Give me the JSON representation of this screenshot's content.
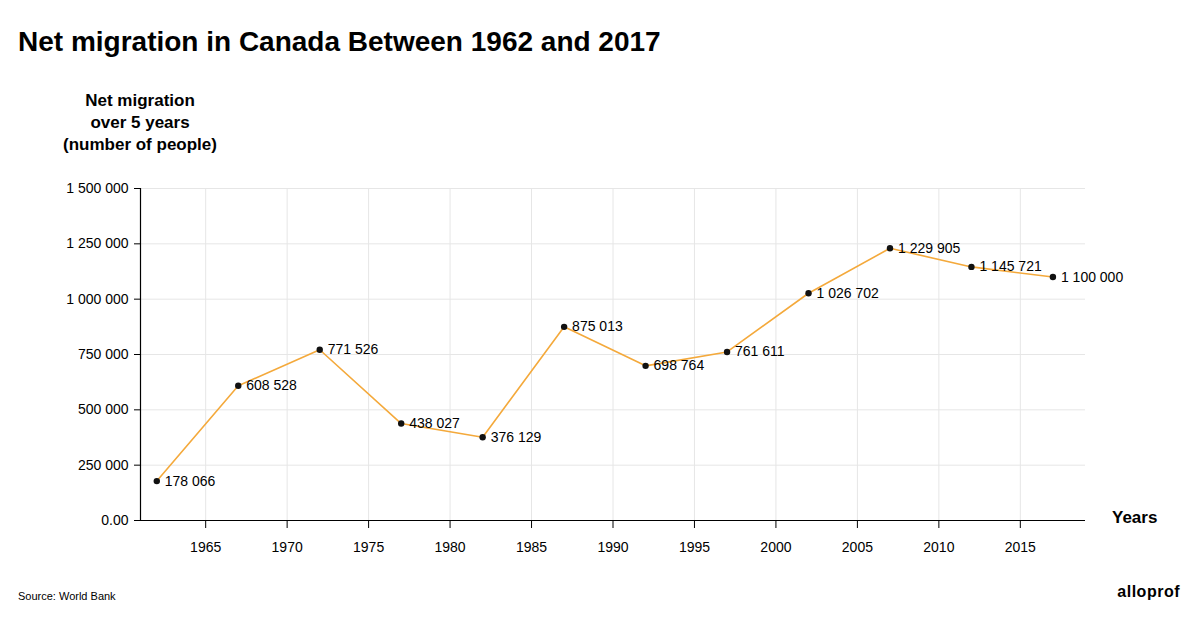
{
  "chart_data": {
    "type": "line",
    "title": "Net migration in Canada Between 1962 and 2017",
    "y_label": "Net migration\nover 5 years\n(number of people)",
    "x_label": "Years",
    "caption": "Source: World Bank",
    "logo": "alloprof",
    "x": [
      1962,
      1967,
      1972,
      1977,
      1982,
      1987,
      1992,
      1997,
      2002,
      2007,
      2012,
      2017
    ],
    "values": [
      178066,
      608528,
      771526,
      438027,
      376129,
      875013,
      698764,
      761611,
      1026702,
      1229905,
      1145721,
      1100000
    ],
    "value_labels": [
      "178 066",
      "608 528",
      "771 526",
      "438 027",
      "376 129",
      "875 013",
      "698 764",
      "761 611",
      "1 026 702",
      "1 229 905",
      "1 145 721",
      "1 100 000"
    ],
    "color": "#f4a93b",
    "marker": "circle",
    "line_style": "solid",
    "data_labels": true,
    "grid": true,
    "xlim": [
      1961,
      2019
    ],
    "xticks": [
      1965,
      1970,
      1975,
      1980,
      1985,
      1990,
      1995,
      2000,
      2005,
      2010,
      2015
    ],
    "ylim": [
      0,
      1500000
    ],
    "yticks": [
      {
        "value": 0,
        "label": "0.00"
      },
      {
        "value": 250000,
        "label": "250 000"
      },
      {
        "value": 500000,
        "label": "500 000"
      },
      {
        "value": 750000,
        "label": "750 000"
      },
      {
        "value": 1000000,
        "label": "1 000 000"
      },
      {
        "value": 1250000,
        "label": "1 250 000"
      },
      {
        "value": 1500000,
        "label": "1 500 000"
      }
    ]
  }
}
